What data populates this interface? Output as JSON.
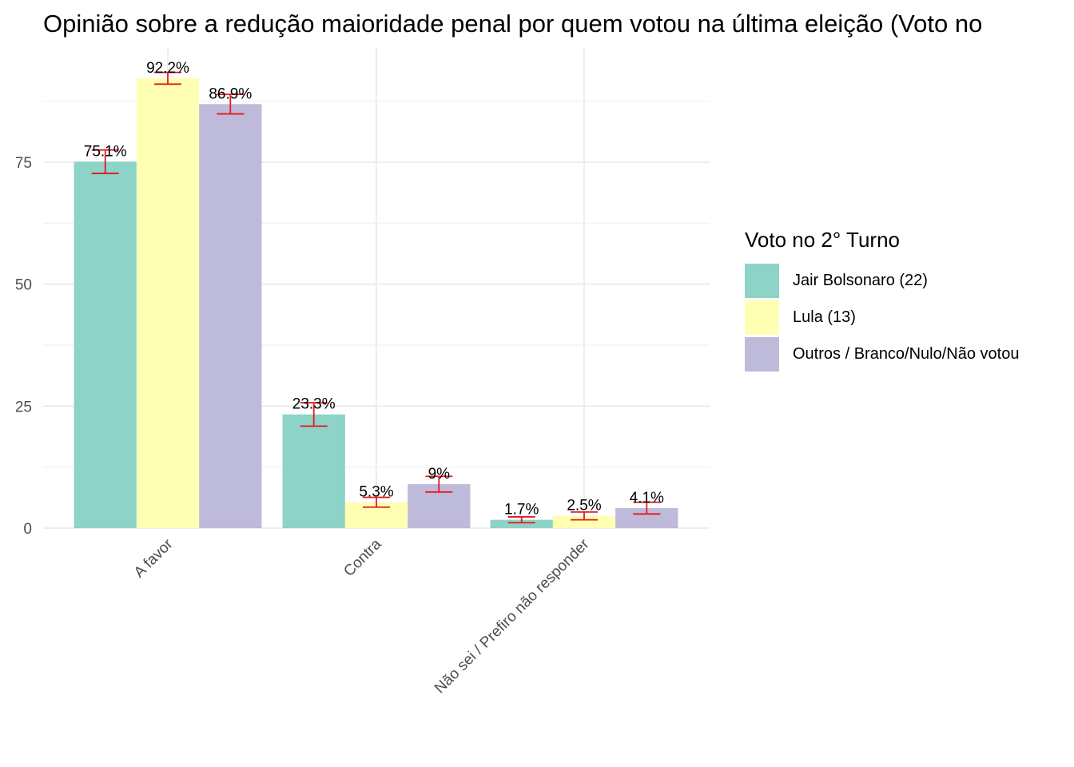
{
  "chart_data": {
    "type": "bar",
    "title": "Opinião sobre a redução maioridade penal por quem votou na última eleição (Voto no",
    "xlabel": "",
    "ylabel": "",
    "categories": [
      "A favor",
      "Contra",
      "Não sei / Prefiro não responder"
    ],
    "series": [
      {
        "name": "Jair Bolsonaro (22)",
        "color": "#8DD3C7",
        "values": [
          75.1,
          23.3,
          1.7
        ],
        "labels": [
          "75.1%",
          "23.3%",
          "1.7%"
        ],
        "error_low": [
          72.7,
          20.9,
          1.1
        ],
        "error_high": [
          77.5,
          25.7,
          2.3
        ]
      },
      {
        "name": "Lula (13)",
        "color": "#FFFFB3",
        "values": [
          92.2,
          5.3,
          2.5
        ],
        "labels": [
          "92.2%",
          "5.3%",
          "2.5%"
        ],
        "error_low": [
          91.0,
          4.3,
          1.7
        ],
        "error_high": [
          93.4,
          6.3,
          3.3
        ]
      },
      {
        "name": "Outros / Branco/Nulo/Não votou",
        "color": "#BEBADA",
        "values": [
          86.9,
          9.0,
          4.1
        ],
        "labels": [
          "86.9%",
          "9%",
          "4.1%"
        ],
        "error_low": [
          84.9,
          7.4,
          2.9
        ],
        "error_high": [
          88.9,
          10.6,
          5.3
        ]
      }
    ],
    "yticks": [
      0,
      25,
      50,
      75
    ],
    "ylim": [
      0,
      98
    ],
    "grid": true,
    "error_bar_color": "#E41A1C",
    "legend": {
      "title": "Voto no 2° Turno",
      "position": "right"
    }
  }
}
